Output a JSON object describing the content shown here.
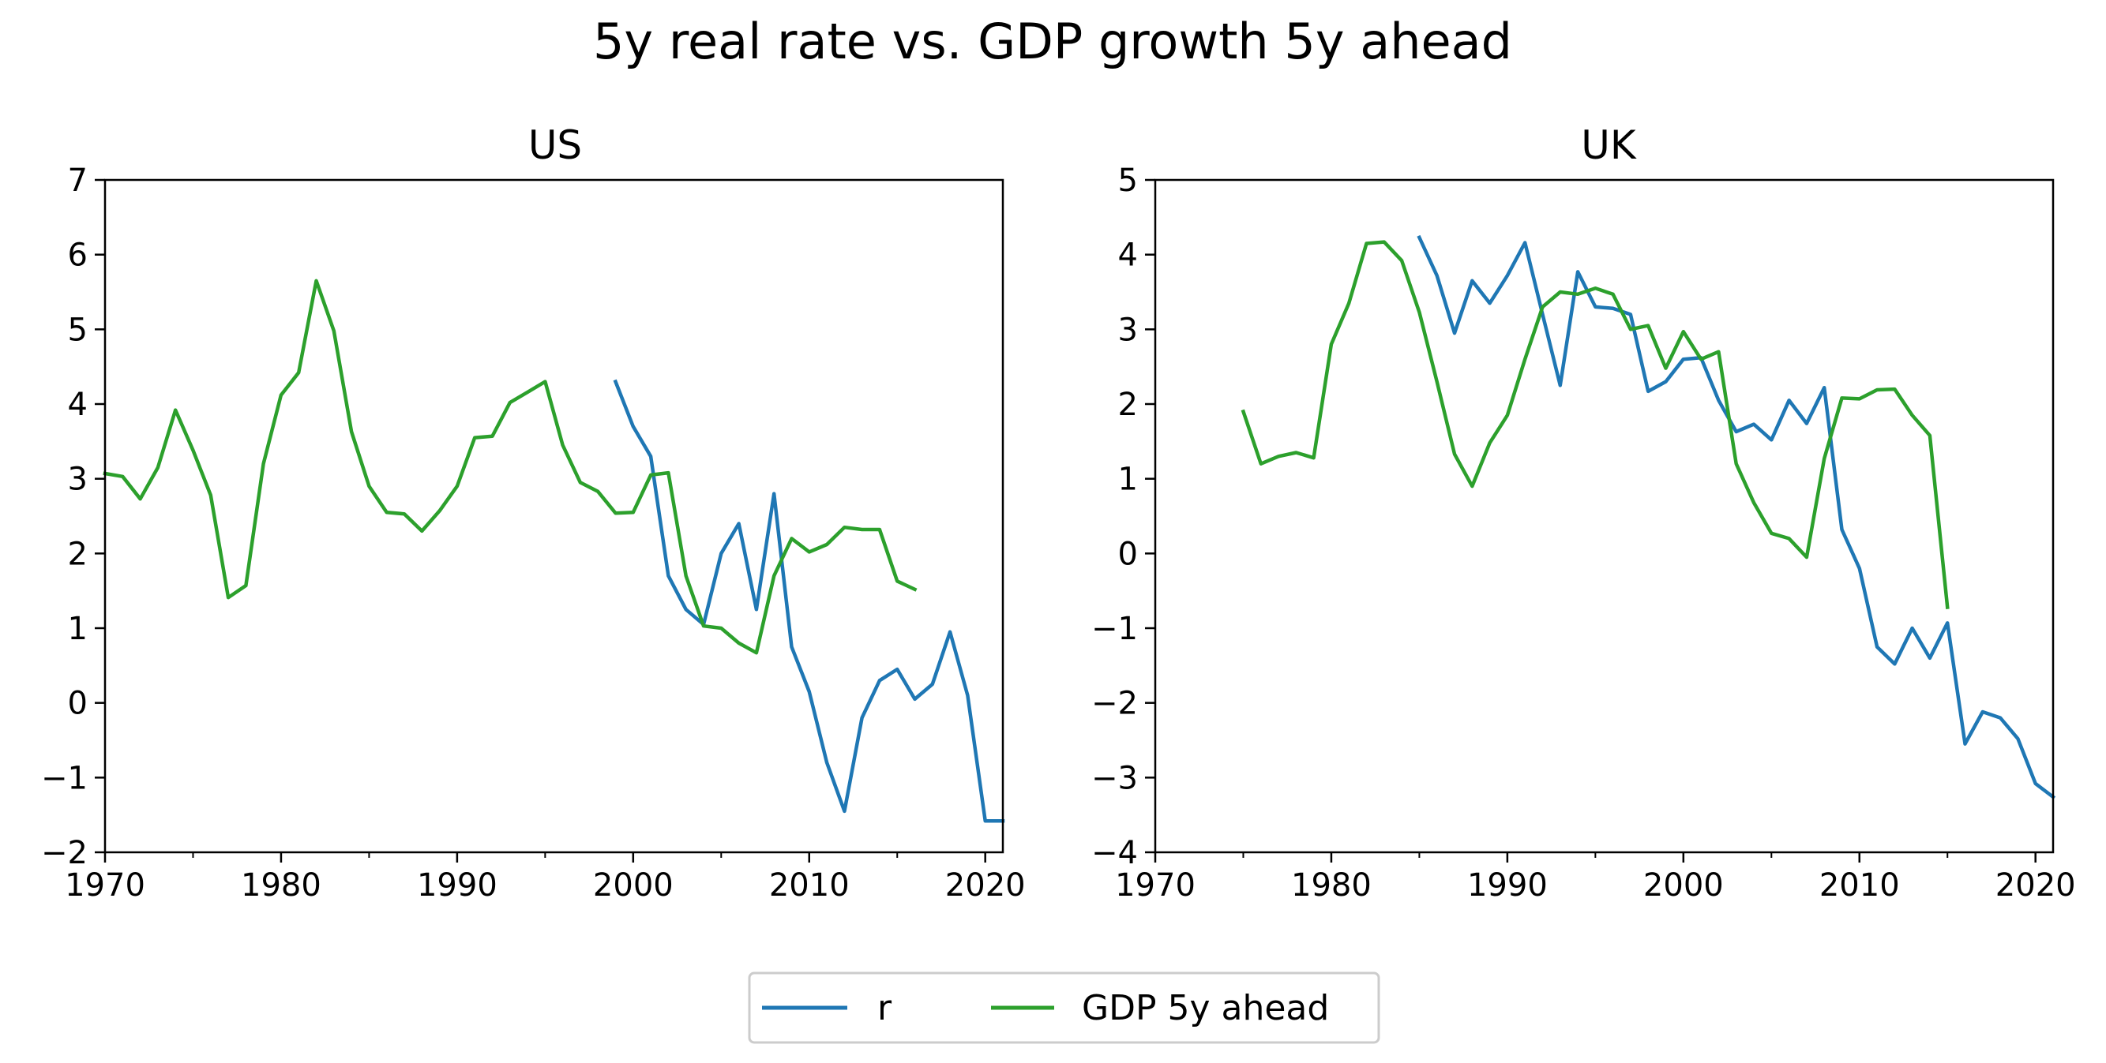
{
  "figure": {
    "title": "5y real rate vs. GDP growth 5y ahead",
    "legend": {
      "location": "lower-center",
      "entries": [
        "r",
        "GDP 5y ahead"
      ]
    },
    "colors": {
      "r": "#1f77b4",
      "gdp": "#2ca02c",
      "axes": "#000000"
    }
  },
  "chart_data": [
    {
      "type": "line",
      "title": "US",
      "xlabel": "",
      "ylabel": "",
      "xlim": [
        1970,
        2021
      ],
      "ylim": [
        -2,
        7
      ],
      "xticks": [
        1970,
        1980,
        1990,
        2000,
        2010,
        2020
      ],
      "yticks": [
        -2,
        -1,
        0,
        1,
        2,
        3,
        4,
        5,
        6,
        7
      ],
      "xtick_labels": [
        "1970",
        "1980",
        "1990",
        "2000",
        "2010",
        "2020"
      ],
      "ytick_labels": [
        "−2",
        "−1",
        "0",
        "1",
        "2",
        "3",
        "4",
        "5",
        "6",
        "7"
      ],
      "grid": false,
      "series": [
        {
          "name": "r",
          "color": "#1f77b4",
          "x": [
            1999,
            2000,
            2001,
            2002,
            2003,
            2004,
            2005,
            2006,
            2007,
            2008,
            2009,
            2010,
            2011,
            2012,
            2013,
            2014,
            2015,
            2016,
            2017,
            2018,
            2019,
            2020,
            2021
          ],
          "y": [
            4.3,
            3.7,
            3.3,
            1.7,
            1.25,
            1.05,
            2.0,
            2.4,
            1.25,
            2.8,
            0.75,
            0.15,
            -0.8,
            -1.45,
            -0.2,
            0.3,
            0.45,
            0.05,
            0.25,
            0.95,
            0.1,
            -1.58,
            -1.58
          ]
        },
        {
          "name": "GDP 5y ahead",
          "color": "#2ca02c",
          "x": [
            1970,
            1971,
            1972,
            1973,
            1974,
            1975,
            1976,
            1977,
            1978,
            1979,
            1980,
            1981,
            1982,
            1983,
            1984,
            1985,
            1986,
            1987,
            1988,
            1989,
            1990,
            1991,
            1992,
            1993,
            1994,
            1995,
            1996,
            1997,
            1998,
            1999,
            2000,
            2001,
            2002,
            2003,
            2004,
            2005,
            2006,
            2007,
            2008,
            2009,
            2010,
            2011,
            2012,
            2013,
            2014,
            2015,
            2016
          ],
          "y": [
            3.07,
            3.03,
            2.73,
            3.15,
            3.92,
            3.38,
            2.78,
            1.41,
            1.57,
            3.2,
            4.12,
            4.42,
            5.65,
            4.98,
            3.63,
            2.9,
            2.55,
            2.53,
            2.3,
            2.57,
            2.9,
            3.55,
            3.57,
            4.02,
            4.16,
            4.3,
            3.45,
            2.95,
            2.83,
            2.54,
            2.55,
            3.05,
            3.08,
            1.7,
            1.03,
            1.0,
            0.8,
            0.67,
            1.7,
            2.2,
            2.02,
            2.12,
            2.35,
            2.32,
            2.32,
            1.63,
            1.52
          ]
        }
      ]
    },
    {
      "type": "line",
      "title": "UK",
      "xlabel": "",
      "ylabel": "",
      "xlim": [
        1970,
        2021
      ],
      "ylim": [
        -4,
        5
      ],
      "xticks": [
        1970,
        1980,
        1990,
        2000,
        2010,
        2020
      ],
      "yticks": [
        -4,
        -3,
        -2,
        -1,
        0,
        1,
        2,
        3,
        4,
        5
      ],
      "xtick_labels": [
        "1970",
        "1980",
        "1990",
        "2000",
        "2010",
        "2020"
      ],
      "ytick_labels": [
        "−4",
        "−3",
        "−2",
        "−1",
        "0",
        "1",
        "2",
        "3",
        "4",
        "5"
      ],
      "grid": false,
      "series": [
        {
          "name": "r",
          "color": "#1f77b4",
          "x": [
            1985,
            1986,
            1987,
            1988,
            1989,
            1990,
            1991,
            1992,
            1993,
            1994,
            1995,
            1996,
            1997,
            1998,
            1999,
            2000,
            2001,
            2002,
            2003,
            2004,
            2005,
            2006,
            2007,
            2008,
            2009,
            2010,
            2011,
            2012,
            2013,
            2014,
            2015,
            2016,
            2017,
            2018,
            2019,
            2020,
            2021
          ],
          "y": [
            4.23,
            3.72,
            2.95,
            3.65,
            3.35,
            3.72,
            4.16,
            3.2,
            2.25,
            3.77,
            3.3,
            3.28,
            3.2,
            2.17,
            2.3,
            2.6,
            2.62,
            2.05,
            1.63,
            1.73,
            1.52,
            2.05,
            1.74,
            2.22,
            0.32,
            -0.2,
            -1.25,
            -1.48,
            -1.0,
            -1.4,
            -0.93,
            -2.55,
            -2.12,
            -2.2,
            -2.48,
            -3.08,
            -3.26
          ]
        },
        {
          "name": "GDP 5y ahead",
          "color": "#2ca02c",
          "x": [
            1975,
            1976,
            1977,
            1978,
            1979,
            1980,
            1981,
            1982,
            1983,
            1984,
            1985,
            1986,
            1987,
            1988,
            1989,
            1990,
            1991,
            1992,
            1993,
            1994,
            1995,
            1996,
            1997,
            1998,
            1999,
            2000,
            2001,
            2002,
            2003,
            2004,
            2005,
            2006,
            2007,
            2008,
            2009,
            2010,
            2011,
            2012,
            2013,
            2014,
            2015
          ],
          "y": [
            1.9,
            1.2,
            1.3,
            1.35,
            1.28,
            2.8,
            3.35,
            4.15,
            4.17,
            3.92,
            3.23,
            2.3,
            1.33,
            0.9,
            1.48,
            1.85,
            2.6,
            3.3,
            3.5,
            3.47,
            3.55,
            3.47,
            3.0,
            3.05,
            2.48,
            2.97,
            2.6,
            2.7,
            1.2,
            0.68,
            0.27,
            0.2,
            -0.05,
            1.27,
            2.08,
            2.07,
            2.19,
            2.2,
            1.85,
            1.58,
            -0.72
          ]
        }
      ]
    }
  ]
}
